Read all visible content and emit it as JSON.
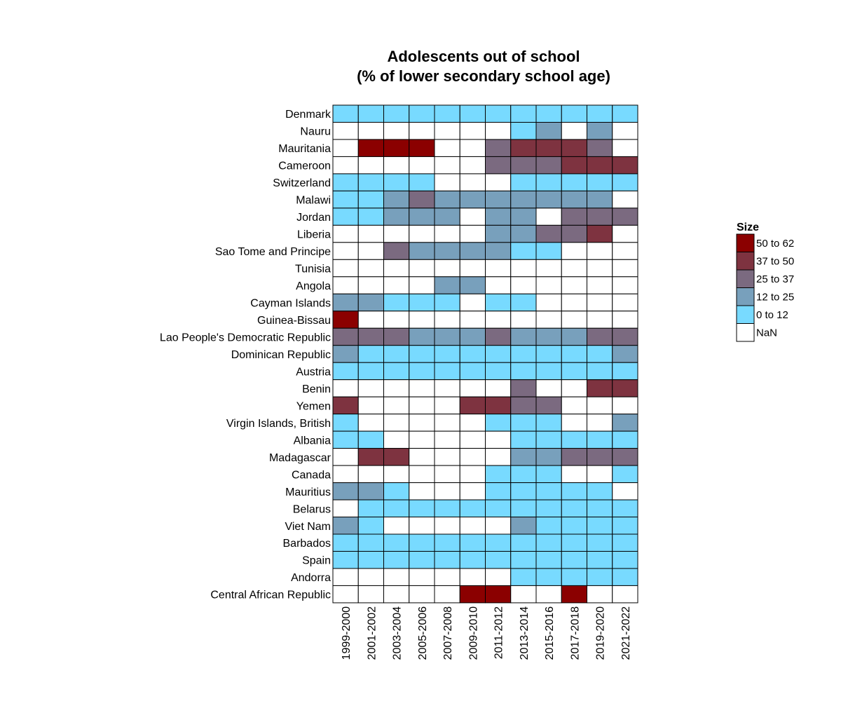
{
  "chart_data": {
    "type": "heatmap",
    "title_lines": [
      "Adolescents out of school",
      "(% of lower secondary school age)"
    ],
    "x": [
      "1999-2000",
      "2001-2002",
      "2003-2004",
      "2005-2006",
      "2007-2008",
      "2009-2010",
      "2011-2012",
      "2013-2014",
      "2015-2016",
      "2017-2018",
      "2019-2020",
      "2021-2022"
    ],
    "y": [
      "Denmark",
      "Nauru",
      "Mauritania",
      "Cameroon",
      "Switzerland",
      "Malawi",
      "Jordan",
      "Liberia",
      "Sao Tome and Principe",
      "Tunisia",
      "Angola",
      "Cayman Islands",
      "Guinea-Bissau",
      "Lao People's Democratic Republic",
      "Dominican Republic",
      "Austria",
      "Benin",
      "Yemen",
      "Virgin Islands, British",
      "Albania",
      "Madagascar",
      "Canada",
      "Mauritius",
      "Belarus",
      "Viet Nam",
      "Barbados",
      "Spain",
      "Andorra",
      "Central African Republic"
    ],
    "legend": {
      "title": "Size",
      "position": "right",
      "bins": [
        {
          "label": "50 to 62",
          "color": "#8B0000"
        },
        {
          "label": "37 to 50",
          "color": "#7E3340"
        },
        {
          "label": "25 to 37",
          "color": "#7B6A80"
        },
        {
          "label": "12 to 25",
          "color": "#78A0BC"
        },
        {
          "label": "0 to 12",
          "color": "#78DAFF"
        },
        {
          "label": "NaN",
          "color": "#FFFFFF"
        }
      ]
    },
    "bin_index_note_values": "bin index per cell: 0=50 to 62, 1=37 to 50, 2=25 to 37, 3=12 to 25, 4=0 to 12, 5=NaN",
    "values": [
      [
        4,
        4,
        4,
        4,
        4,
        4,
        4,
        4,
        4,
        4,
        4,
        4
      ],
      [
        5,
        5,
        5,
        5,
        5,
        5,
        5,
        4,
        3,
        5,
        3,
        5
      ],
      [
        5,
        0,
        0,
        0,
        5,
        5,
        2,
        1,
        1,
        1,
        2,
        5
      ],
      [
        5,
        5,
        5,
        5,
        5,
        5,
        2,
        2,
        2,
        1,
        1,
        1
      ],
      [
        4,
        4,
        4,
        4,
        5,
        5,
        5,
        4,
        4,
        4,
        4,
        4
      ],
      [
        4,
        4,
        3,
        2,
        3,
        3,
        3,
        3,
        3,
        3,
        3,
        5
      ],
      [
        4,
        4,
        3,
        3,
        3,
        5,
        3,
        3,
        5,
        2,
        2,
        2
      ],
      [
        5,
        5,
        5,
        5,
        5,
        5,
        3,
        3,
        2,
        2,
        1,
        5
      ],
      [
        5,
        5,
        2,
        3,
        3,
        3,
        3,
        4,
        4,
        5,
        5,
        5
      ],
      [
        5,
        5,
        5,
        5,
        5,
        5,
        5,
        5,
        5,
        5,
        5,
        5
      ],
      [
        5,
        5,
        5,
        5,
        3,
        3,
        5,
        5,
        5,
        5,
        5,
        5
      ],
      [
        3,
        3,
        4,
        4,
        4,
        5,
        4,
        4,
        5,
        5,
        5,
        5
      ],
      [
        0,
        5,
        5,
        5,
        5,
        5,
        5,
        5,
        5,
        5,
        5,
        5
      ],
      [
        2,
        2,
        2,
        3,
        3,
        3,
        2,
        3,
        3,
        3,
        2,
        2
      ],
      [
        3,
        4,
        4,
        4,
        4,
        4,
        4,
        4,
        4,
        4,
        4,
        3
      ],
      [
        4,
        4,
        4,
        4,
        4,
        4,
        4,
        4,
        4,
        4,
        4,
        4
      ],
      [
        5,
        5,
        5,
        5,
        5,
        5,
        5,
        2,
        5,
        5,
        1,
        1
      ],
      [
        1,
        5,
        5,
        5,
        5,
        1,
        1,
        2,
        2,
        5,
        5,
        5
      ],
      [
        4,
        5,
        5,
        5,
        5,
        5,
        4,
        4,
        4,
        5,
        5,
        3
      ],
      [
        4,
        4,
        5,
        5,
        5,
        5,
        5,
        4,
        4,
        4,
        4,
        4
      ],
      [
        5,
        1,
        1,
        5,
        5,
        5,
        5,
        3,
        3,
        2,
        2,
        2
      ],
      [
        5,
        5,
        5,
        5,
        5,
        5,
        4,
        4,
        4,
        5,
        5,
        4
      ],
      [
        3,
        3,
        4,
        5,
        5,
        5,
        4,
        4,
        4,
        4,
        4,
        5
      ],
      [
        5,
        4,
        4,
        4,
        4,
        4,
        4,
        4,
        4,
        4,
        4,
        4
      ],
      [
        3,
        4,
        5,
        5,
        5,
        5,
        5,
        3,
        4,
        4,
        4,
        4
      ],
      [
        4,
        4,
        4,
        4,
        4,
        4,
        4,
        4,
        4,
        4,
        4,
        4
      ],
      [
        4,
        4,
        4,
        4,
        4,
        4,
        4,
        4,
        4,
        4,
        4,
        4
      ],
      [
        5,
        5,
        5,
        5,
        5,
        5,
        5,
        4,
        4,
        4,
        4,
        4
      ],
      [
        5,
        5,
        5,
        5,
        5,
        0,
        0,
        5,
        5,
        0,
        5,
        5
      ]
    ]
  }
}
